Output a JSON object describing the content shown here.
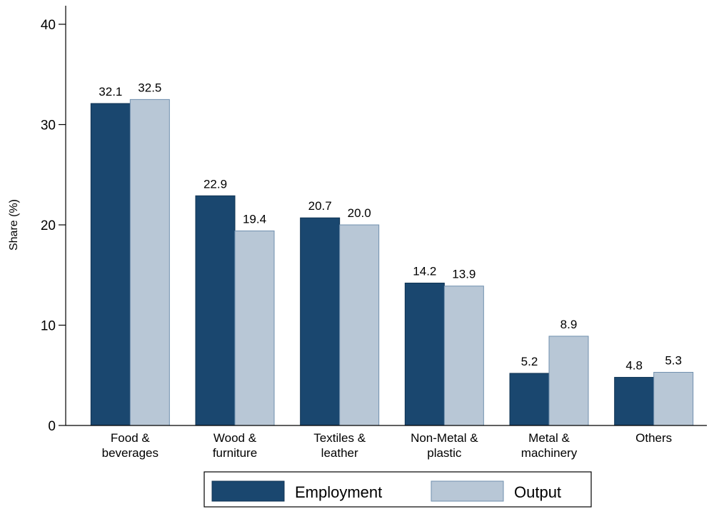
{
  "chart_data": {
    "type": "bar",
    "categories": [
      [
        "Food &",
        "beverages"
      ],
      [
        "Wood &",
        "furniture"
      ],
      [
        "Textiles &",
        "leather"
      ],
      [
        "Non-Metal &",
        "plastic"
      ],
      [
        "Metal &",
        "machinery"
      ],
      [
        "Others"
      ]
    ],
    "series": [
      {
        "name": "Employment",
        "color": "#1a476f",
        "values": [
          32.1,
          22.9,
          20.7,
          14.2,
          5.2,
          4.8
        ],
        "labels": [
          "32.1",
          "22.9",
          "20.7",
          "14.2",
          "5.2",
          "4.8"
        ]
      },
      {
        "name": "Output",
        "color": "#b8c7d6",
        "values": [
          32.5,
          19.4,
          20.0,
          13.9,
          8.9,
          5.3
        ],
        "labels": [
          "32.5",
          "19.4",
          "20.0",
          "13.9",
          "8.9",
          "5.3"
        ]
      }
    ],
    "ylabel": "Share (%)",
    "ylim": [
      0,
      40
    ],
    "yticks": [
      "0",
      "10",
      "20",
      "30",
      "40"
    ],
    "grid": false,
    "legend": "bottom"
  }
}
